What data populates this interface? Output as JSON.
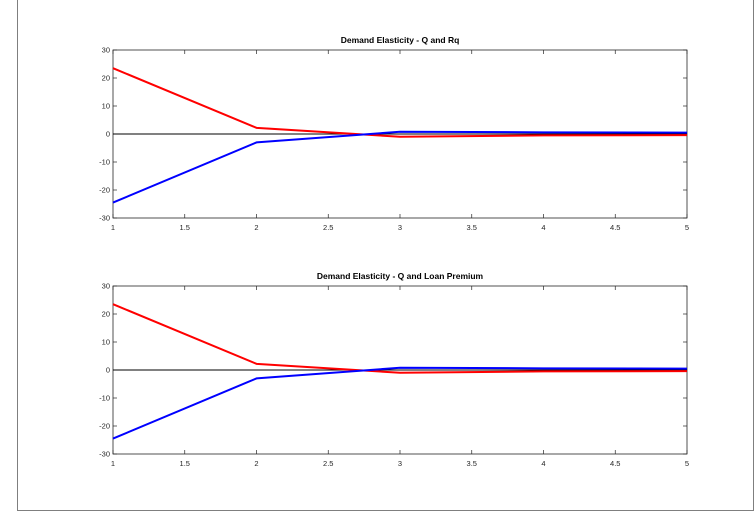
{
  "colors": {
    "series_red": "#ff0000",
    "series_blue": "#0000ff",
    "zero_line": "#000000",
    "axes": "#262626",
    "grid_text": "#262626"
  },
  "chart_data": [
    {
      "type": "line",
      "title": "Demand Elasticity  - Q and Rq",
      "xlabel": "",
      "ylabel": "",
      "xlim": [
        1,
        5
      ],
      "ylim": [
        -30,
        30
      ],
      "x_ticks": [
        1,
        1.5,
        2,
        2.5,
        3,
        3.5,
        4,
        4.5,
        5
      ],
      "x_tick_labels": [
        "1",
        "1.5",
        "2",
        "2.5",
        "3",
        "3.5",
        "4",
        "4.5",
        "5"
      ],
      "y_ticks": [
        -30,
        -20,
        -10,
        0,
        10,
        20,
        30
      ],
      "y_tick_labels": [
        "-30",
        "-20",
        "-10",
        "0",
        "10",
        "20",
        "30"
      ],
      "grid": false,
      "reference_line_y": 0,
      "x": [
        1,
        2,
        3,
        4,
        5
      ],
      "series": [
        {
          "color": "#ff0000",
          "values": [
            23.5,
            2.2,
            -1.0,
            -0.5,
            -0.4
          ]
        },
        {
          "color": "#0000ff",
          "values": [
            -24.5,
            -3.0,
            0.8,
            0.6,
            0.5
          ]
        }
      ]
    },
    {
      "type": "line",
      "title": "Demand Elasticity - Q and Loan Premium",
      "xlabel": "",
      "ylabel": "",
      "xlim": [
        1,
        5
      ],
      "ylim": [
        -30,
        30
      ],
      "x_ticks": [
        1,
        1.5,
        2,
        2.5,
        3,
        3.5,
        4,
        4.5,
        5
      ],
      "x_tick_labels": [
        "1",
        "1.5",
        "2",
        "2.5",
        "3",
        "3.5",
        "4",
        "4.5",
        "5"
      ],
      "y_ticks": [
        -30,
        -20,
        -10,
        0,
        10,
        20,
        30
      ],
      "y_tick_labels": [
        "-30",
        "-20",
        "-10",
        "0",
        "10",
        "20",
        "30"
      ],
      "grid": false,
      "reference_line_y": 0,
      "x": [
        1,
        2,
        3,
        4,
        5
      ],
      "series": [
        {
          "color": "#ff0000",
          "values": [
            23.5,
            2.2,
            -1.0,
            -0.5,
            -0.4
          ]
        },
        {
          "color": "#0000ff",
          "values": [
            -24.5,
            -3.0,
            0.8,
            0.6,
            0.5
          ]
        }
      ]
    }
  ]
}
